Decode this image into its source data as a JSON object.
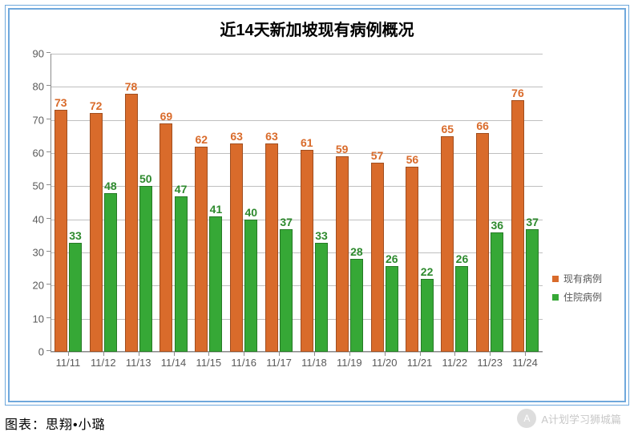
{
  "chart": {
    "type": "bar",
    "title": "近14天新加坡现有病例概况",
    "title_fontsize": 20,
    "background_color": "#ffffff",
    "border_color": "#6fa8dc",
    "grid_color": "#bfbfbf",
    "axis_color": "#8c8c8c",
    "tick_color": "#595959",
    "ylim": [
      0,
      90
    ],
    "ytick_step": 10,
    "categories": [
      "11/11",
      "11/12",
      "11/13",
      "11/14",
      "11/15",
      "11/16",
      "11/17",
      "11/18",
      "11/19",
      "11/20",
      "11/21",
      "11/22",
      "11/23",
      "11/24"
    ],
    "series": [
      {
        "name": "现有病例",
        "color": "#d96b2b",
        "border_color": "#a04e1f",
        "label_color": "#d96b2b",
        "values": [
          73,
          72,
          78,
          69,
          62,
          63,
          63,
          61,
          59,
          57,
          56,
          65,
          66,
          76
        ]
      },
      {
        "name": "住院病例",
        "color": "#36a836",
        "border_color": "#267a26",
        "label_color": "#2e8a2e",
        "values": [
          33,
          48,
          50,
          47,
          41,
          40,
          37,
          33,
          28,
          26,
          22,
          26,
          36,
          37
        ]
      }
    ],
    "bar_group_gap": 0.22,
    "bar_inner_gap": 0.05,
    "label_fontsize": 14,
    "tick_fontsize": 13
  },
  "legend": {
    "items": [
      {
        "label": "现有病例",
        "color": "#d96b2b"
      },
      {
        "label": "住院病例",
        "color": "#36a836"
      }
    ]
  },
  "footer": {
    "text": "图表：思翔•小璐"
  },
  "watermark": {
    "text": "A计划学习狮城篇"
  }
}
